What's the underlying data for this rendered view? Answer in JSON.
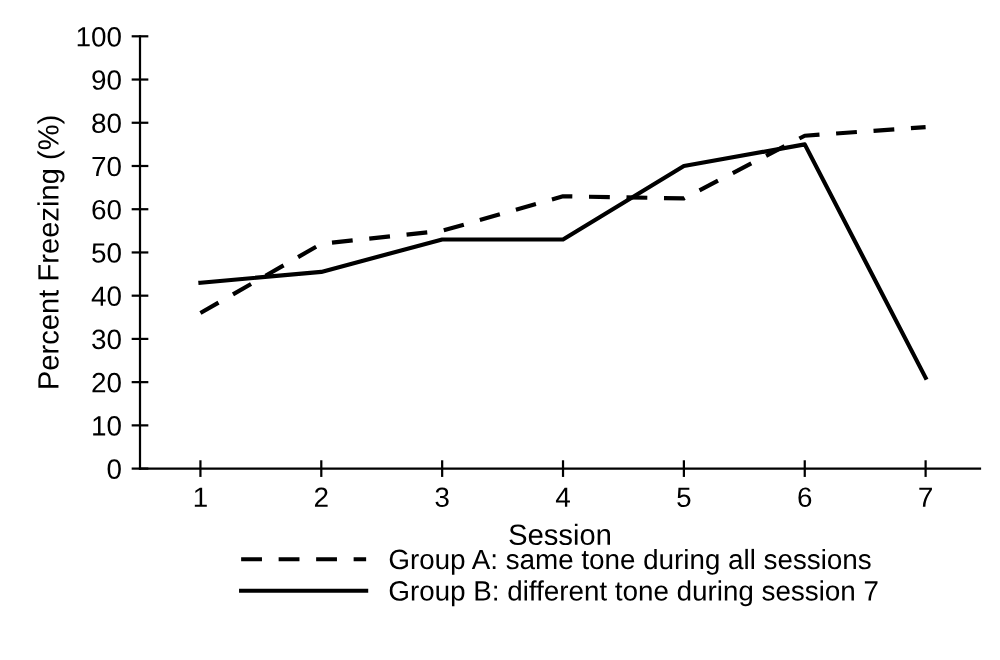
{
  "chart_data": {
    "type": "line",
    "xlabel": "Session",
    "ylabel": "Percent Freezing (%)",
    "x": [
      1,
      2,
      3,
      4,
      5,
      6,
      7
    ],
    "series": [
      {
        "name": "Group A: same tone during all sessions",
        "color": "#000000",
        "line_style": "dashed",
        "values": [
          36,
          52,
          55,
          63,
          62.5,
          77,
          79
        ]
      },
      {
        "name": "Group B: different tone during session 7",
        "color": "#000000",
        "line_style": "solid",
        "values": [
          43,
          45.5,
          53,
          53,
          70,
          75,
          21
        ]
      }
    ],
    "xlim": [
      0.5,
      7.45
    ],
    "xticks": [
      1,
      2,
      3,
      4,
      5,
      6,
      7
    ],
    "ylim": [
      0,
      100
    ],
    "yticks": [
      0,
      10,
      20,
      30,
      40,
      50,
      60,
      70,
      80,
      90,
      100
    ],
    "grid": false,
    "legend": "bottom",
    "marker": "none"
  }
}
